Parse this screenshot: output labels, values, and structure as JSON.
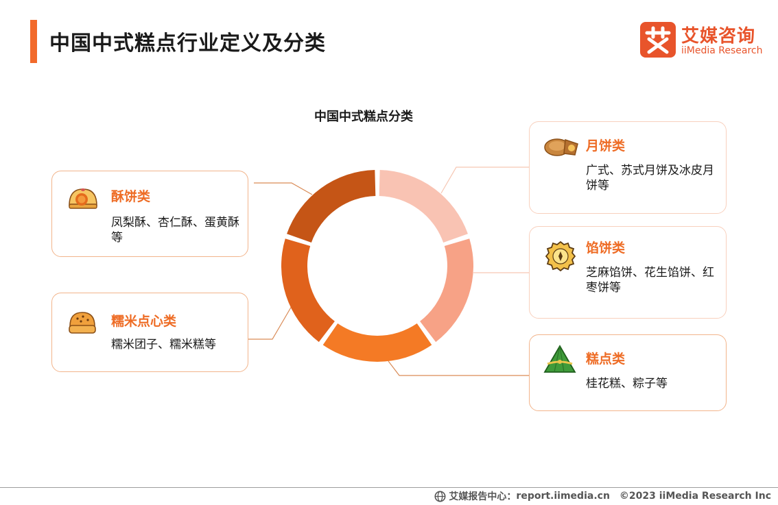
{
  "header": {
    "title": "中国中式糕点行业定义及分类"
  },
  "logo": {
    "mark": "艾",
    "name_cn": "艾媒咨询",
    "name_en": "iiMedia Research"
  },
  "diagram": {
    "title": "中国中式糕点分类",
    "categories": [
      {
        "name": "月饼类",
        "description": "广式、苏式月饼及冰皮月饼等",
        "color": "#f9c3b3",
        "icon": "mooncake-icon"
      },
      {
        "name": "馅饼类",
        "description": "芝麻馅饼、花生馅饼、红枣饼等",
        "color": "#f7a286",
        "icon": "filled-pie-icon"
      },
      {
        "name": "糕点类",
        "description": "桂花糕、粽子等",
        "color": "#f47a25",
        "icon": "zongzi-icon"
      },
      {
        "name": "糯米点心类",
        "description": "糯米团子、糯米糕等",
        "color": "#e0621c",
        "icon": "rice-bun-icon"
      },
      {
        "name": "酥饼类",
        "description": "凤梨酥、杏仁酥、蛋黄酥等",
        "color": "#c55516",
        "icon": "pastry-icon"
      }
    ]
  },
  "footer": {
    "source_label": "艾媒报告中心：",
    "source_url": "report.iimedia.cn",
    "copyright": "©2023  iiMedia Research  Inc"
  }
}
